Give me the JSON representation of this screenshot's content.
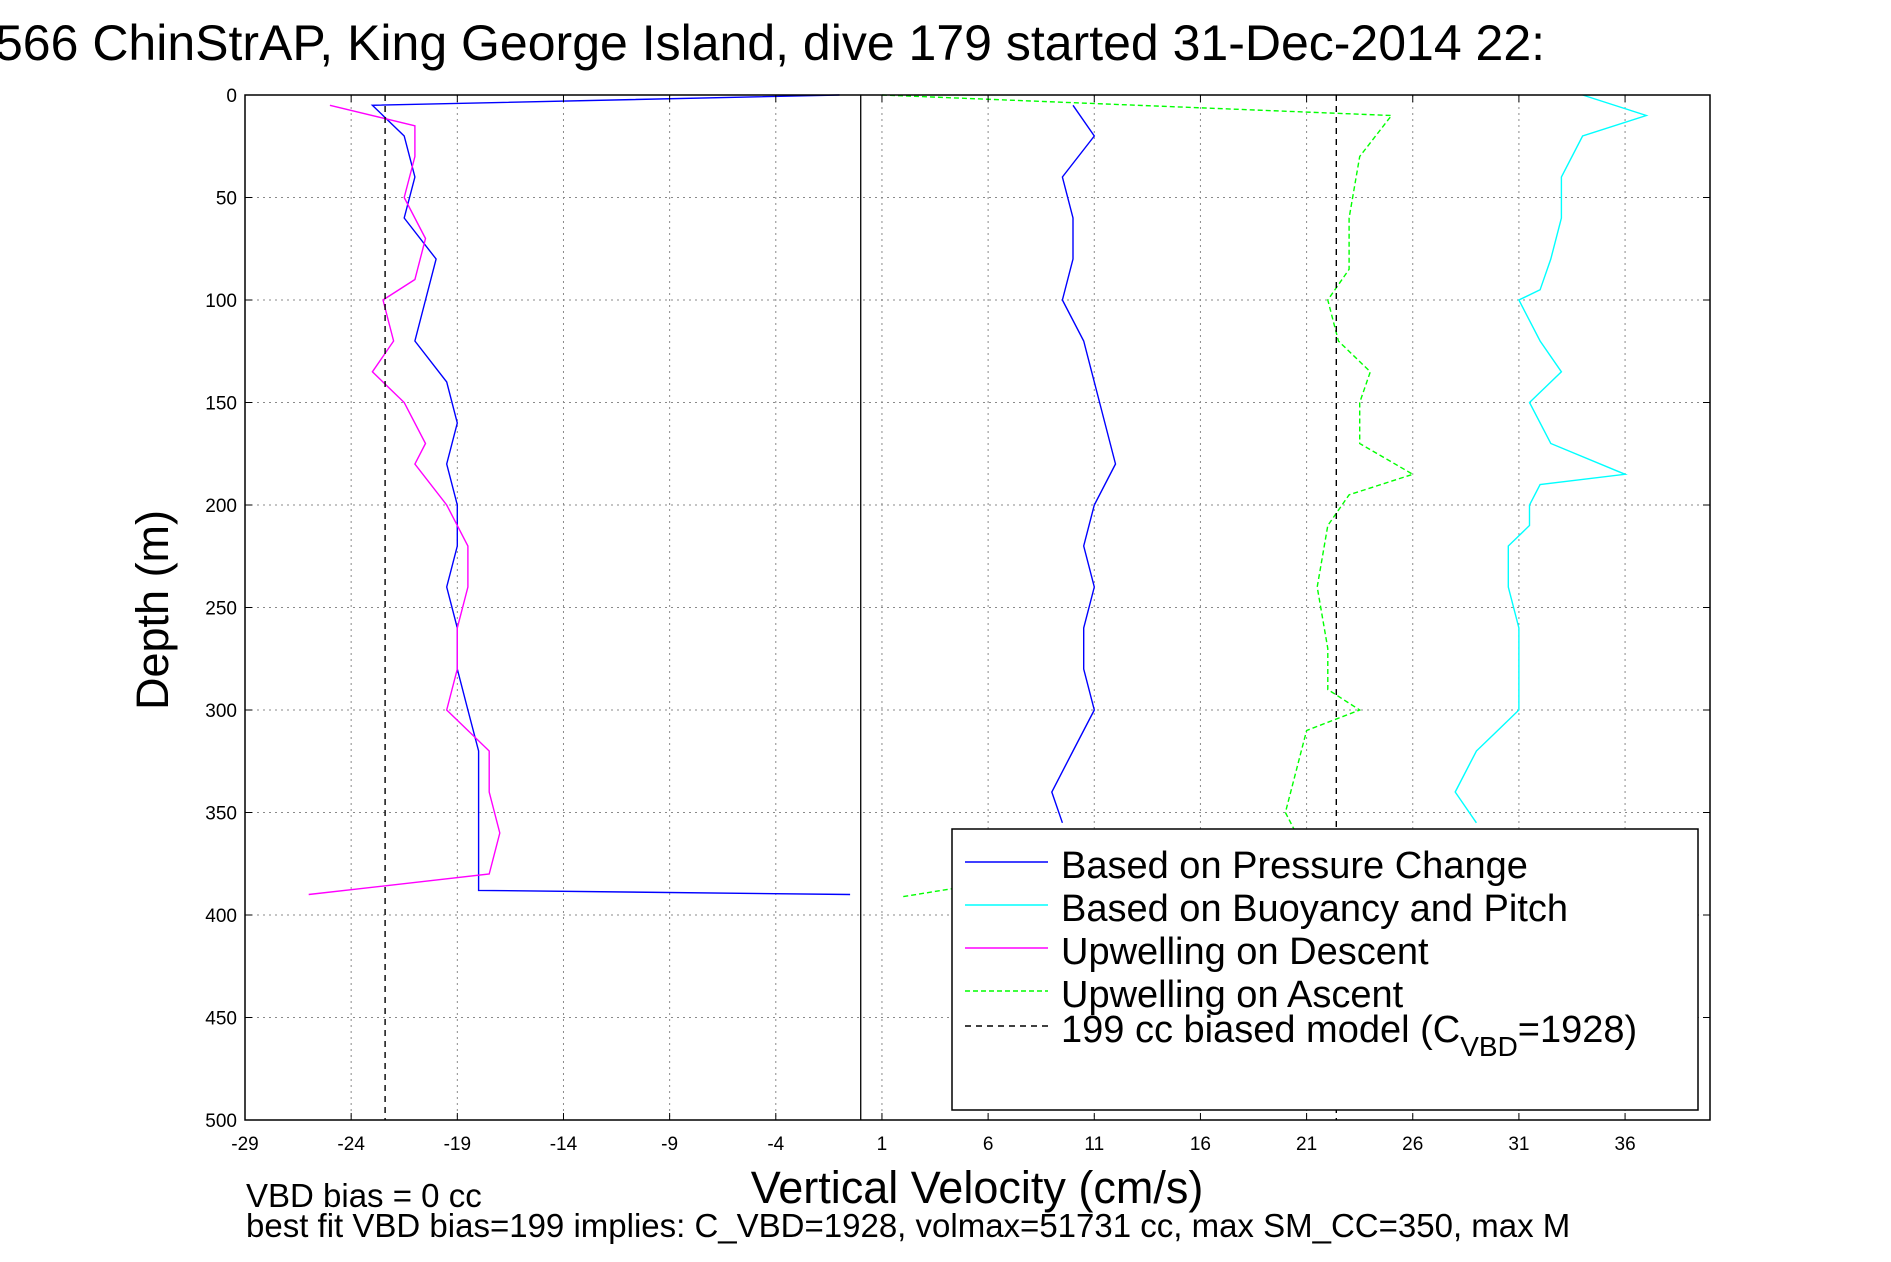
{
  "title": "566 ChinStrAP, King George Island, dive 179 started 31-Dec-2014 22:",
  "footer": {
    "line1": "VBD bias = 0 cc",
    "line2": "best fit VBD bias=199 implies: C_VBD=1928, volmax=51731 cc, max SM_CC=350, max M"
  },
  "chart_data": {
    "type": "line",
    "title": "566 ChinStrAP, King George Island, dive 179 started 31-Dec-2014 22:",
    "xlabel": "Vertical Velocity (cm/s)",
    "ylabel": "Depth (m)",
    "xlim": [
      -29,
      40
    ],
    "ylim": [
      0,
      500
    ],
    "y_reversed": true,
    "x_ticks": [
      "-29",
      "-24",
      "-19",
      "-14",
      "-9",
      "-4",
      "1",
      "6",
      "11",
      "16",
      "21",
      "26",
      "31",
      "36"
    ],
    "y_ticks": [
      "0",
      "50",
      "100",
      "150",
      "200",
      "250",
      "300",
      "350",
      "400",
      "450",
      "500"
    ],
    "grid": true,
    "legend_position": "bottom-right",
    "legend": [
      {
        "label": "Based on Pressure Change",
        "color": "#0000ff",
        "dash": false
      },
      {
        "label": "Based on Buoyancy and Pitch",
        "color": "#00ffff",
        "dash": false
      },
      {
        "label": "Upwelling on Descent",
        "color": "#ff00ff",
        "dash": false
      },
      {
        "label": "Upwelling on Ascent",
        "color": "#00ff00",
        "dash": true
      },
      {
        "label": "199 cc biased model (C",
        "sub": "VBD",
        "tail": "=1928)",
        "color": "#000000",
        "dash": true
      }
    ],
    "series": [
      {
        "name": "Based on Pressure Change",
        "color": "#0000ff",
        "dash": false,
        "points": [
          [
            -1,
            0
          ],
          [
            -23,
            5
          ],
          [
            -21.5,
            20
          ],
          [
            -21,
            40
          ],
          [
            -21.5,
            60
          ],
          [
            -20,
            80
          ],
          [
            -20.5,
            100
          ],
          [
            -21,
            120
          ],
          [
            -19.5,
            140
          ],
          [
            -19,
            160
          ],
          [
            -19.5,
            180
          ],
          [
            -19,
            200
          ],
          [
            -19,
            220
          ],
          [
            -19.5,
            240
          ],
          [
            -19,
            260
          ],
          [
            -19,
            280
          ],
          [
            -18.5,
            300
          ],
          [
            -18,
            320
          ],
          [
            -18,
            340
          ],
          [
            -18,
            360
          ],
          [
            -18,
            380
          ],
          [
            -18,
            388
          ],
          [
            -0.5,
            390
          ],
          [
            10,
            5
          ],
          [
            11,
            20
          ],
          [
            9.5,
            40
          ],
          [
            10,
            60
          ],
          [
            10,
            80
          ],
          [
            9.5,
            100
          ],
          [
            10.5,
            120
          ],
          [
            11,
            140
          ],
          [
            11.5,
            160
          ],
          [
            12,
            180
          ],
          [
            11,
            200
          ],
          [
            10.5,
            220
          ],
          [
            11,
            240
          ],
          [
            10.5,
            260
          ],
          [
            10.5,
            280
          ],
          [
            11,
            300
          ],
          [
            10,
            320
          ],
          [
            9,
            340
          ],
          [
            9.5,
            355
          ]
        ]
      },
      {
        "name": "Based on Buoyancy and Pitch",
        "color": "#00ffff",
        "dash": false,
        "points": [
          [
            34,
            0
          ],
          [
            37,
            10
          ],
          [
            34,
            20
          ],
          [
            33,
            40
          ],
          [
            33,
            60
          ],
          [
            32.5,
            80
          ],
          [
            32,
            95
          ],
          [
            31,
            100
          ],
          [
            32,
            120
          ],
          [
            33,
            135
          ],
          [
            31.5,
            150
          ],
          [
            32.5,
            170
          ],
          [
            36,
            185
          ],
          [
            32,
            190
          ],
          [
            31.5,
            200
          ],
          [
            31.5,
            210
          ],
          [
            30.5,
            220
          ],
          [
            30.5,
            240
          ],
          [
            31,
            260
          ],
          [
            31,
            280
          ],
          [
            31,
            300
          ],
          [
            30,
            310
          ],
          [
            29,
            320
          ],
          [
            28,
            340
          ],
          [
            29,
            355
          ]
        ]
      },
      {
        "name": "Upwelling on Descent",
        "color": "#ff00ff",
        "dash": false,
        "points": [
          [
            -25,
            5
          ],
          [
            -21,
            15
          ],
          [
            -21,
            30
          ],
          [
            -21.5,
            50
          ],
          [
            -20.5,
            70
          ],
          [
            -21,
            90
          ],
          [
            -22.5,
            100
          ],
          [
            -22,
            120
          ],
          [
            -23,
            135
          ],
          [
            -21.5,
            150
          ],
          [
            -20.5,
            170
          ],
          [
            -21,
            180
          ],
          [
            -19.5,
            200
          ],
          [
            -18.5,
            220
          ],
          [
            -18.5,
            240
          ],
          [
            -19,
            260
          ],
          [
            -19,
            280
          ],
          [
            -19.5,
            300
          ],
          [
            -17.5,
            320
          ],
          [
            -17.5,
            340
          ],
          [
            -17,
            360
          ],
          [
            -17.5,
            380
          ],
          [
            -26,
            390
          ]
        ]
      },
      {
        "name": "Upwelling on Ascent",
        "color": "#00ff00",
        "dash": true,
        "points": [
          [
            1,
            0
          ],
          [
            25,
            10
          ],
          [
            23.5,
            30
          ],
          [
            23,
            60
          ],
          [
            23,
            85
          ],
          [
            22,
            100
          ],
          [
            22.5,
            120
          ],
          [
            24,
            135
          ],
          [
            23.5,
            150
          ],
          [
            23.5,
            170
          ],
          [
            26,
            185
          ],
          [
            23,
            195
          ],
          [
            22,
            210
          ],
          [
            21.5,
            240
          ],
          [
            22,
            270
          ],
          [
            22,
            290
          ],
          [
            23.5,
            300
          ],
          [
            21,
            310
          ],
          [
            20.5,
            330
          ],
          [
            20,
            350
          ],
          [
            20.5,
            360
          ],
          [
            2,
            391
          ]
        ]
      },
      {
        "name": "199 cc biased model (C_VBD=1928)",
        "color": "#000000",
        "dash": true,
        "points": [
          [
            -22.4,
            0
          ],
          [
            -22.4,
            500
          ]
        ]
      },
      {
        "name": "199 cc biased model (C_VBD=1928)",
        "color": "#000000",
        "dash": true,
        "points": [
          [
            22.4,
            0
          ],
          [
            22.4,
            500
          ]
        ]
      }
    ],
    "reference_line": {
      "x": 0,
      "color": "#000000"
    }
  }
}
